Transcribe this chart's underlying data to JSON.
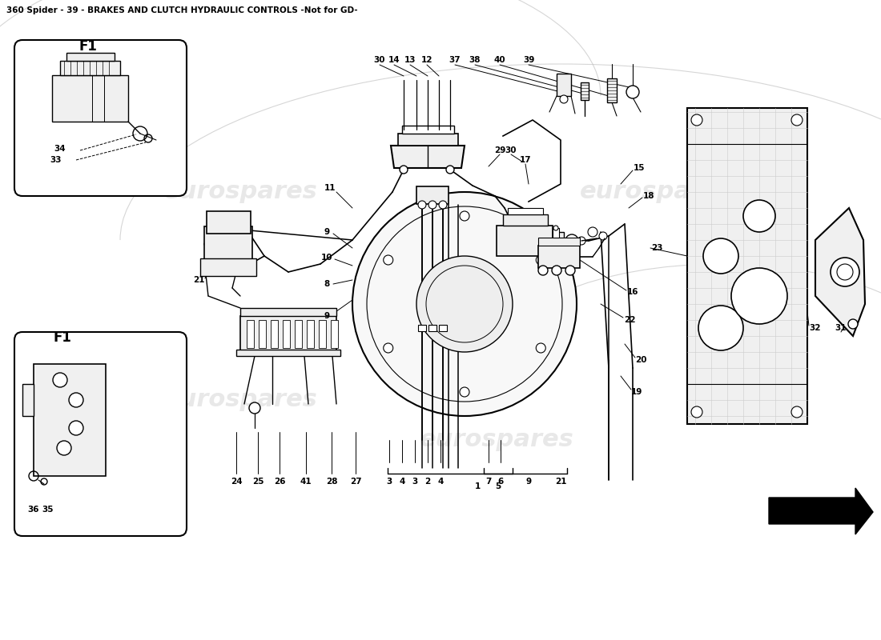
{
  "title": "360 Spider - 39 - BRAKES AND CLUTCH HYDRAULIC CONTROLS -Not for GD-",
  "title_fontsize": 7.5,
  "bg_color": "#ffffff",
  "lc": "#000000",
  "fig_width": 11.0,
  "fig_height": 8.0,
  "watermark1": "eurospares",
  "watermark2": "eurospares",
  "wm_color": "#cccccc",
  "wm_alpha": 0.45
}
